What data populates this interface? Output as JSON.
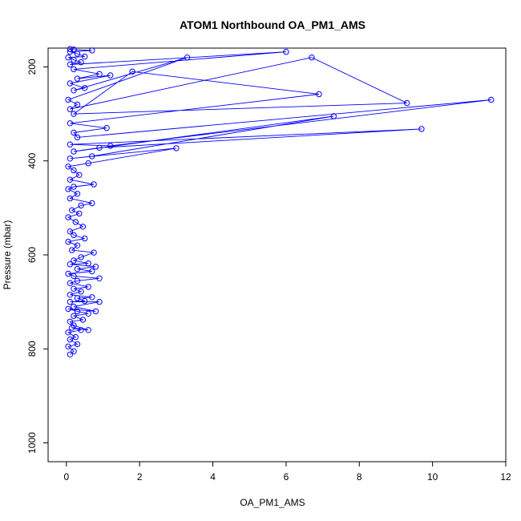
{
  "chart_data": {
    "type": "scatter",
    "title": "ATOM1 Northbound OA_PM1_AMS",
    "xlabel": "OA_PM1_AMS",
    "ylabel": "Pressure (mbar)",
    "xlim": [
      -0.5,
      12.0
    ],
    "ylim": [
      1040,
      160
    ],
    "y_axis_reversed": true,
    "x_ticks": [
      0,
      2,
      4,
      6,
      8,
      10,
      12
    ],
    "y_ticks": [
      200,
      400,
      600,
      800,
      1000
    ],
    "grid": false,
    "legend": "none",
    "series_color": "#0000ff",
    "connect_points": true,
    "series": [
      {
        "points": [
          [
            0.1,
            812
          ],
          [
            0.2,
            805
          ],
          [
            0.05,
            795
          ],
          [
            0.3,
            790
          ],
          [
            0.1,
            780
          ],
          [
            0.25,
            775
          ],
          [
            0.05,
            765
          ],
          [
            0.4,
            760
          ],
          [
            0.15,
            755
          ],
          [
            0.6,
            760
          ],
          [
            0.2,
            750
          ],
          [
            0.1,
            742
          ],
          [
            0.45,
            738
          ],
          [
            0.2,
            730
          ],
          [
            0.6,
            725
          ],
          [
            0.3,
            720
          ],
          [
            0.05,
            715
          ],
          [
            0.8,
            720
          ],
          [
            0.2,
            710
          ],
          [
            0.9,
            700
          ],
          [
            0.1,
            700
          ],
          [
            0.5,
            698
          ],
          [
            0.3,
            692
          ],
          [
            0.7,
            690
          ],
          [
            0.1,
            685
          ],
          [
            0.4,
            678
          ],
          [
            0.2,
            672
          ],
          [
            0.6,
            668
          ],
          [
            0.1,
            660
          ],
          [
            0.3,
            655
          ],
          [
            0.9,
            650
          ],
          [
            0.2,
            645
          ],
          [
            0.05,
            640
          ],
          [
            0.7,
            635
          ],
          [
            0.3,
            630
          ],
          [
            0.8,
            625
          ],
          [
            0.1,
            620
          ],
          [
            0.6,
            618
          ],
          [
            0.2,
            612
          ],
          [
            0.4,
            605
          ],
          [
            0.75,
            595
          ],
          [
            0.15,
            590
          ],
          [
            0.3,
            580
          ],
          [
            0.05,
            572
          ],
          [
            0.5,
            565
          ],
          [
            0.2,
            558
          ],
          [
            0.1,
            550
          ],
          [
            0.45,
            540
          ],
          [
            0.25,
            530
          ],
          [
            0.05,
            520
          ],
          [
            0.35,
            512
          ],
          [
            0.15,
            505
          ],
          [
            0.4,
            495
          ],
          [
            0.7,
            490
          ],
          [
            0.1,
            480
          ],
          [
            0.3,
            470
          ],
          [
            0.05,
            460
          ],
          [
            0.2,
            455
          ],
          [
            0.75,
            450
          ],
          [
            0.1,
            440
          ],
          [
            0.35,
            430
          ],
          [
            0.2,
            420
          ],
          [
            0.05,
            412
          ],
          [
            0.6,
            405
          ],
          [
            3.0,
            373
          ],
          [
            0.1,
            395
          ],
          [
            0.7,
            390
          ],
          [
            7.3,
            305
          ],
          [
            0.2,
            380
          ],
          [
            0.9,
            372
          ],
          [
            9.7,
            332
          ],
          [
            0.1,
            365
          ],
          [
            1.2,
            368
          ],
          [
            11.6,
            270
          ],
          [
            0.3,
            350
          ],
          [
            0.2,
            340
          ],
          [
            1.1,
            330
          ],
          [
            0.1,
            320
          ],
          [
            6.9,
            258
          ],
          [
            1.8,
            210
          ],
          [
            0.2,
            300
          ],
          [
            9.3,
            277
          ],
          [
            6.7,
            180
          ],
          [
            0.1,
            290
          ],
          [
            0.3,
            280
          ],
          [
            0.05,
            270
          ],
          [
            3.3,
            180
          ],
          [
            0.2,
            250
          ],
          [
            0.5,
            245
          ],
          [
            0.1,
            235
          ],
          [
            1.2,
            218
          ],
          [
            0.3,
            225
          ],
          [
            0.9,
            215
          ],
          [
            0.2,
            205
          ],
          [
            6.0,
            168
          ],
          [
            0.1,
            195
          ],
          [
            0.4,
            190
          ],
          [
            0.2,
            185
          ],
          [
            0.05,
            180
          ],
          [
            0.5,
            178
          ],
          [
            0.3,
            172
          ],
          [
            0.1,
            168
          ],
          [
            0.7,
            165
          ],
          [
            0.2,
            163
          ],
          [
            0.1,
            162
          ]
        ]
      }
    ]
  }
}
